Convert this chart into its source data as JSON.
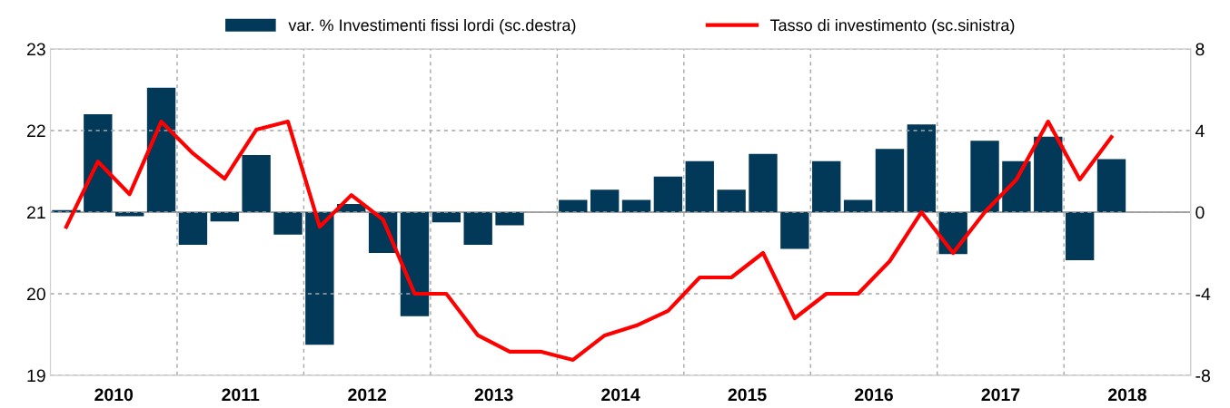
{
  "chart_data": {
    "type": "bar",
    "x": [
      2010.125,
      2010.375,
      2010.625,
      2010.875,
      2011.125,
      2011.375,
      2011.625,
      2011.875,
      2012.125,
      2012.375,
      2012.625,
      2012.875,
      2013.125,
      2013.375,
      2013.625,
      2013.875,
      2014.125,
      2014.375,
      2014.625,
      2014.875,
      2015.125,
      2015.375,
      2015.625,
      2015.875,
      2016.125,
      2016.375,
      2016.625,
      2016.875,
      2017.125,
      2017.375,
      2017.625,
      2017.875,
      2018.125,
      2018.375
    ],
    "series": [
      {
        "name": "var. % Investimenti fissi lordi (sc.destra)",
        "axis": "y2",
        "color": "#023858",
        "values": [
          0.1,
          4.8,
          -0.2,
          6.1,
          -1.6,
          -0.45,
          2.8,
          -1.1,
          -6.5,
          0.4,
          -2.0,
          -5.1,
          -0.5,
          -1.6,
          -0.65,
          null,
          0.6,
          1.1,
          0.6,
          1.75,
          2.5,
          1.1,
          2.85,
          -1.8,
          2.5,
          0.6,
          3.1,
          4.3,
          -2.05,
          3.5,
          2.5,
          3.7,
          -2.35,
          2.6
        ]
      },
      {
        "name": "Tasso di investimento (sc.sinistra)",
        "type": "line",
        "axis": "y",
        "color": "#ff0000",
        "values": [
          20.82,
          21.62,
          21.22,
          22.11,
          21.72,
          21.41,
          22.01,
          22.11,
          20.82,
          21.21,
          20.91,
          20.0,
          20.0,
          19.49,
          19.29,
          19.29,
          19.19,
          19.49,
          19.61,
          19.79,
          20.2,
          20.2,
          20.5,
          19.7,
          20.0,
          20.0,
          20.4,
          21.0,
          20.5,
          21.0,
          21.4,
          22.11,
          21.4,
          21.92
        ]
      }
    ],
    "xlim": [
      2010,
      2019
    ],
    "xticks": [
      {
        "value": 2010.5,
        "label": "2010"
      },
      {
        "value": 2011.5,
        "label": "2011"
      },
      {
        "value": 2012.5,
        "label": "2012"
      },
      {
        "value": 2013.5,
        "label": "2013"
      },
      {
        "value": 2014.5,
        "label": "2014"
      },
      {
        "value": 2015.5,
        "label": "2015"
      },
      {
        "value": 2016.5,
        "label": "2016"
      },
      {
        "value": 2017.5,
        "label": "2017"
      },
      {
        "value": 2018.5,
        "label": "2018"
      }
    ],
    "ylim": [
      19,
      23
    ],
    "yticks": [
      19,
      20,
      21,
      22,
      23
    ],
    "y2lim": [
      -8,
      8
    ],
    "y2ticks": [
      {
        "value": -8,
        "label": "-8"
      },
      {
        "value": -4,
        "label": "-4"
      },
      0,
      4,
      8
    ],
    "ref_lines": [
      {
        "axis": "x",
        "value": 2011,
        "color": "#a6a6a6",
        "line_style": "dashed"
      },
      {
        "axis": "x",
        "value": 2012,
        "color": "#a6a6a6",
        "line_style": "dashed"
      },
      {
        "axis": "x",
        "value": 2013,
        "color": "#a6a6a6",
        "line_style": "dashed"
      },
      {
        "axis": "x",
        "value": 2014,
        "color": "#a6a6a6",
        "line_style": "dashed"
      },
      {
        "axis": "x",
        "value": 2015,
        "color": "#a6a6a6",
        "line_style": "dashed"
      },
      {
        "axis": "x",
        "value": 2016,
        "color": "#a6a6a6",
        "line_style": "dashed"
      },
      {
        "axis": "x",
        "value": 2017,
        "color": "#a6a6a6",
        "line_style": "dashed"
      },
      {
        "axis": "x",
        "value": 2018,
        "color": "#a6a6a6",
        "line_style": "dashed"
      },
      {
        "axis": "y2",
        "value": 0,
        "color": "#808080",
        "line_style": "solid"
      }
    ],
    "grid": "y",
    "legend": "top",
    "line_style": "solid",
    "marker": "none"
  }
}
